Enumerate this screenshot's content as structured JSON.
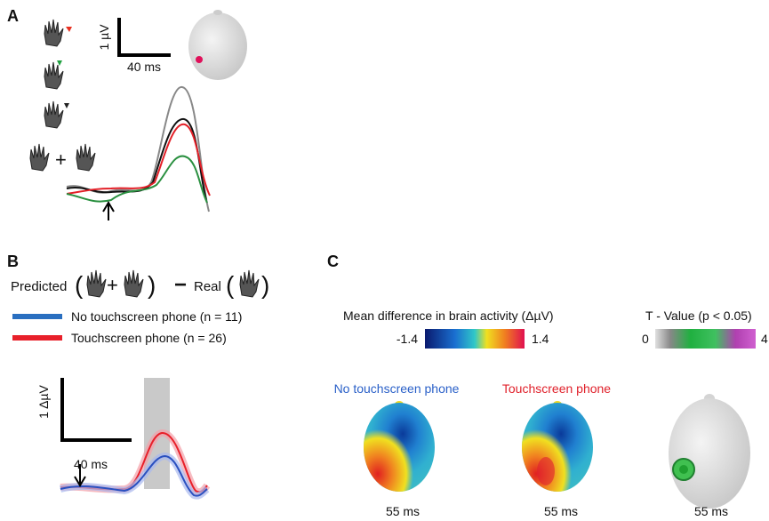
{
  "panel_a": {
    "label": "A",
    "scale_y": "1 µV",
    "scale_x": "40 ms",
    "plus": "+"
  },
  "panel_b": {
    "label": "B",
    "formula": {
      "predicted": "Predicted",
      "plus": "+",
      "minus": "−",
      "real": "Real"
    },
    "legend": [
      {
        "name": "No touchscreen phone (n = 11)",
        "color": "#2a6fc0"
      },
      {
        "name": "Touchscreen phone (n = 26)",
        "color": "#e8202a"
      }
    ],
    "scale_y": "1 ΔµV",
    "scale_x": "40 ms"
  },
  "panel_c": {
    "label": "C",
    "colorbar_1": {
      "title": "Mean difference in brain activity (ΔµV)",
      "min": "-1.4",
      "max": "1.4"
    },
    "colorbar_2": {
      "title": "T - Value (p < 0.05)",
      "min": "0",
      "max": "4"
    },
    "maps": [
      {
        "title": "No touchscreen phone",
        "time": "55 ms"
      },
      {
        "title": "Touchscreen phone",
        "time": "55 ms"
      },
      {
        "time": "55 ms"
      }
    ]
  }
}
